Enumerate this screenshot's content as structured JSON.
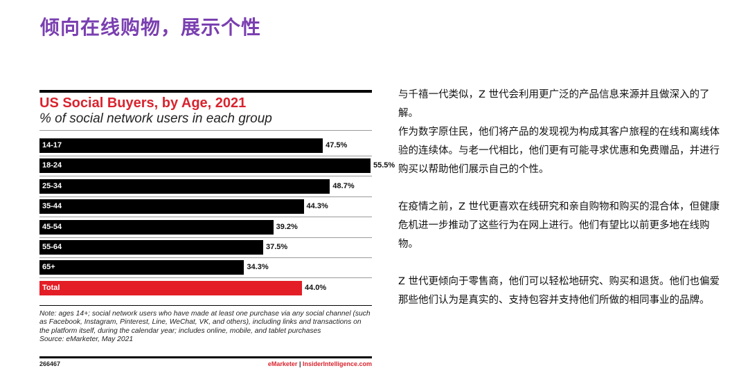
{
  "slide": {
    "title": "倾向在线购物，展示个性"
  },
  "chart_data": {
    "type": "bar",
    "orientation": "horizontal",
    "title": "US Social Buyers, by Age, 2021",
    "subtitle": "% of social network users in each group",
    "categories": [
      "14-17",
      "18-24",
      "25-34",
      "35-44",
      "45-54",
      "55-64",
      "65+",
      "Total"
    ],
    "values": [
      47.5,
      55.5,
      48.7,
      44.3,
      39.2,
      37.5,
      34.3,
      44.0
    ],
    "value_labels": [
      "47.5%",
      "55.5%",
      "48.7%",
      "44.3%",
      "39.2%",
      "37.5%",
      "34.3%",
      "44.0%"
    ],
    "colors": {
      "bar": "#000000",
      "total": "#e31e26",
      "title": "#d9232e"
    },
    "note": "Note: ages 14+; social network users who have made at least one purchase via any social channel (such as Facebook, Instagram, Pinterest, Line, WeChat, VK, and others), including links and transactions on the platform itself, during the calendar year; includes online, mobile, and tablet purchases",
    "source": "Source: eMarketer, May 2021",
    "figure_id": "266467",
    "brand_left": "eMarketer",
    "brand_sep": " | ",
    "brand_right": "InsiderIntelligence.com"
  },
  "body": {
    "paragraphs": [
      "与千禧一代类似，Z 世代会利用更广泛的产品信息来源并且做深入的了解。\n作为数字原住民，他们将产品的发现视为构成其客户旅程的在线和离线体验的连续体。与老一代相比，他们更有可能寻求优惠和免费赠品，并进行购买以帮助他们展示自己的个性。",
      "在疫情之前，Z 世代更喜欢在线研究和亲自购物和购买的混合体，但健康危机进一步推动了这些行为在网上进行。他们有望比以前更多地在线购物。",
      "Z 世代更倾向于零售商，他们可以轻松地研究、购买和退货。他们也偏爱那些他们认为是真实的、支持包容并支持他们所做的相同事业的品牌。"
    ]
  }
}
